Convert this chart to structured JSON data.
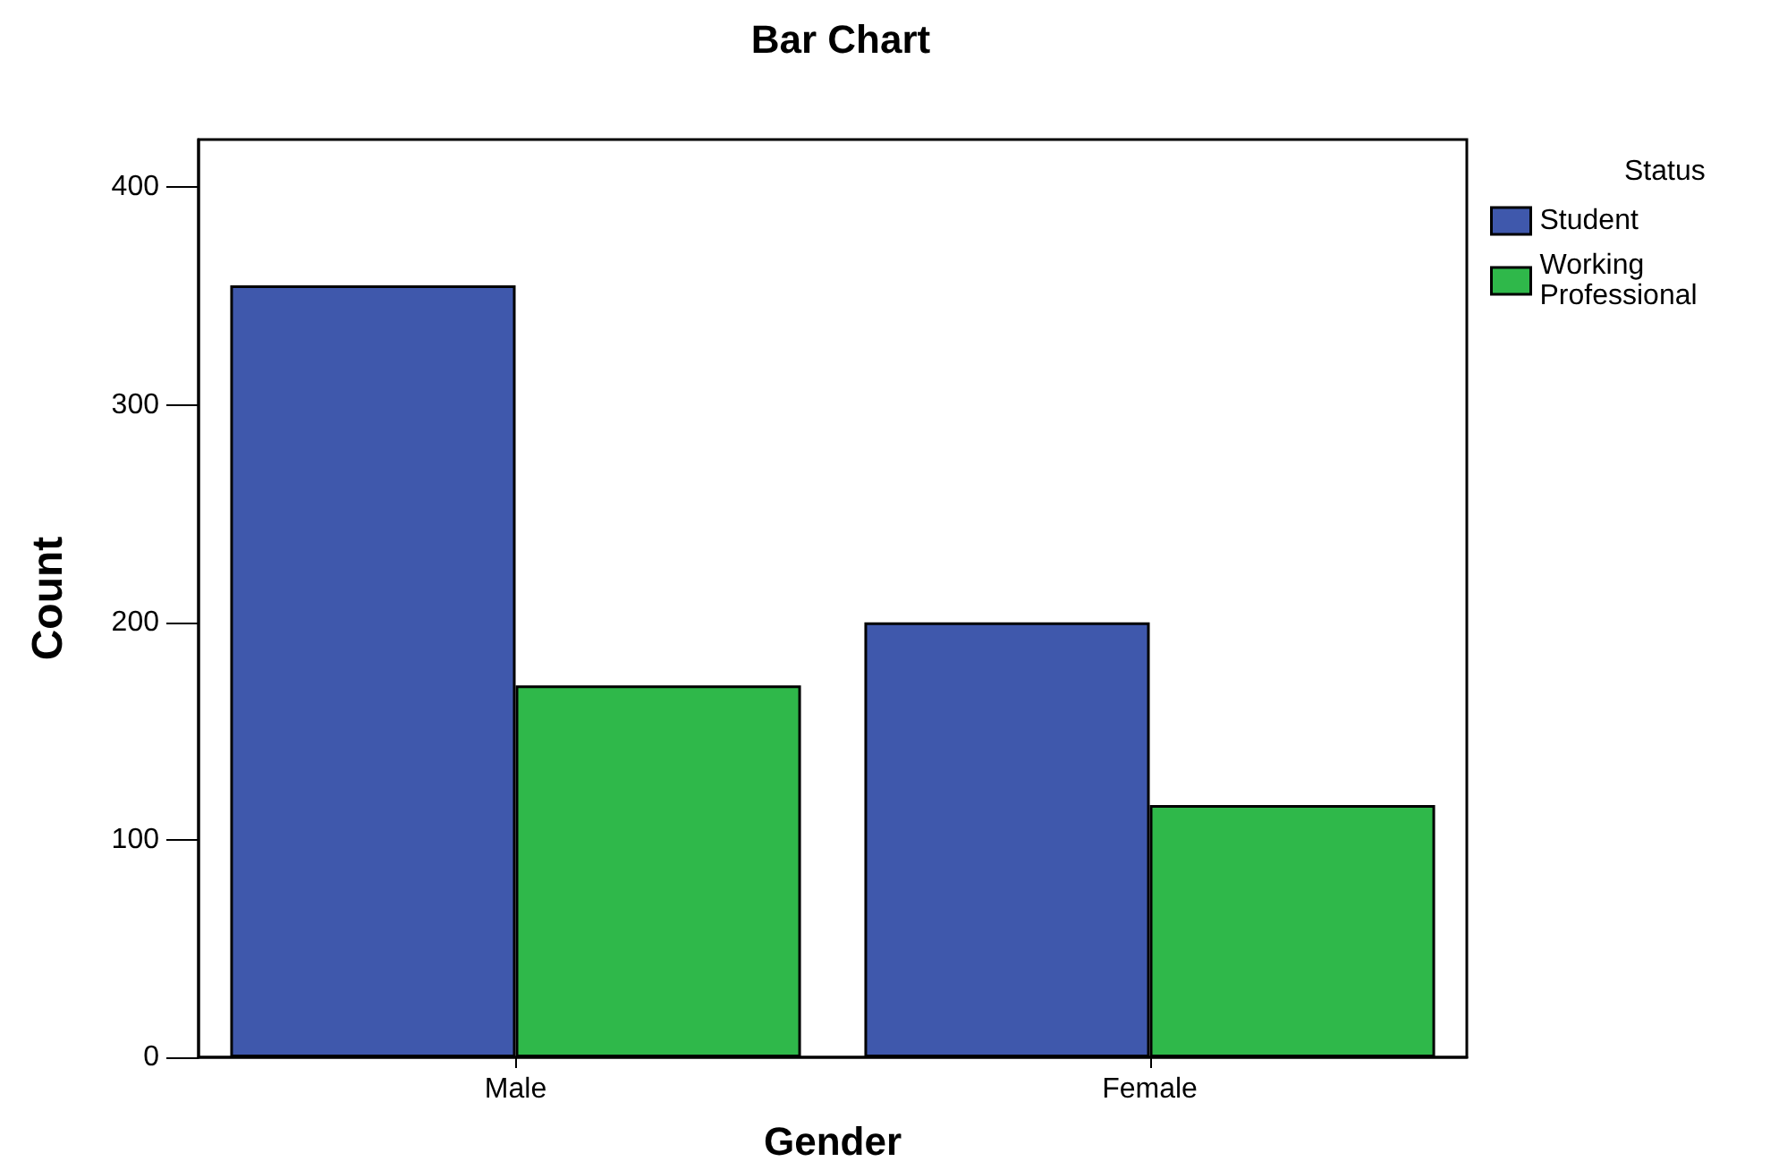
{
  "chart_data": {
    "type": "bar",
    "title": "Bar Chart",
    "xlabel": "Gender",
    "ylabel": "Count",
    "legend_title": "Status",
    "categories": [
      "Male",
      "Female"
    ],
    "series": [
      {
        "name": "Student",
        "color": "#3f58ac",
        "values": [
          355,
          200
        ]
      },
      {
        "name": "Working Professional",
        "color": "#2fb84a",
        "values": [
          171,
          116
        ]
      }
    ],
    "ylim": [
      0,
      422
    ],
    "yticks": [
      0,
      100,
      200,
      300,
      400
    ],
    "grid": false,
    "legend": "top right"
  }
}
